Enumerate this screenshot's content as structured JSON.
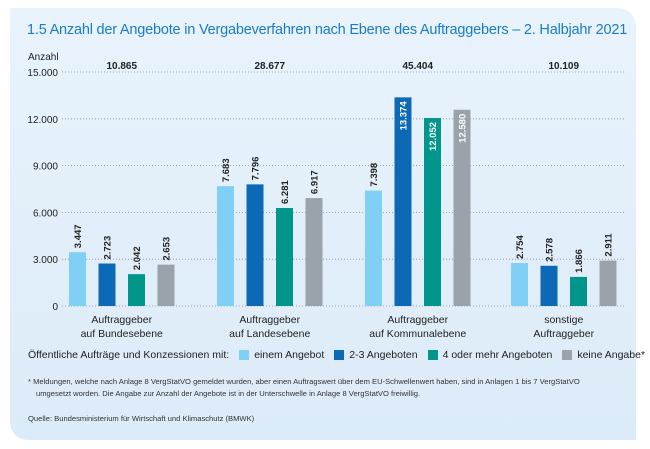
{
  "chart_data": {
    "type": "bar",
    "title": "1.5  Anzahl der Angebote in Vergabeverfahren nach Ebene des Auftraggebers – 2. Halbjahr 2021",
    "ylabel": "Anzahl",
    "ylim": [
      0,
      15000
    ],
    "yticks": [
      "0",
      "3.000",
      "6.000",
      "9.000",
      "12.000",
      "15.000"
    ],
    "grid": true,
    "categories": [
      [
        "Auftraggeber",
        "auf Bundesebene"
      ],
      [
        "Auftraggeber",
        "auf Landesebene"
      ],
      [
        "Auftraggeber",
        "auf Kommunalebene"
      ],
      [
        "sonstige",
        "Auftraggeber"
      ]
    ],
    "totals": [
      "10.865",
      "28.677",
      "45.404",
      "10.109"
    ],
    "series": [
      {
        "name": "einem Angebot",
        "color": "#7fd0f4",
        "values": [
          3447,
          7683,
          7398,
          2754
        ],
        "labels": [
          "3.447",
          "7.683",
          "7.398",
          "2.754"
        ]
      },
      {
        "name": "2-3 Angeboten",
        "color": "#0b69b5",
        "values": [
          2723,
          7796,
          13374,
          2578
        ],
        "labels": [
          "2.723",
          "7.796",
          "13.374",
          "2.578"
        ]
      },
      {
        "name": "4 oder mehr Angeboten",
        "color": "#00968c",
        "values": [
          2042,
          6281,
          12052,
          1866
        ],
        "labels": [
          "2.042",
          "6.281",
          "12.052",
          "1.866"
        ]
      },
      {
        "name": "keine Angabe*",
        "color": "#9aa3ab",
        "values": [
          2653,
          6917,
          12580,
          2911
        ],
        "labels": [
          "2.653",
          "6.917",
          "12.580",
          "2.911"
        ]
      }
    ],
    "legend_title": "Öffentliche Aufträge und Konzessionen mit:",
    "legend_position": "bottom"
  },
  "footnote": [
    "*  Meldungen, welche nach Anlage 8 VergStatVO gemeldet wurden, aber einen Auftragswert über dem EU-Schwellenwert haben, sind in Anlagen 1 bis 7 VergStatVO",
    "umgesetzt worden. Die Angabe zur Anzahl der Angebote ist in der Unterschwelle in Anlage 8 VergStatVO freiwillig."
  ],
  "source": "Quelle: Bundesministerium für Wirtschaft und Klimaschutz (BMWK)"
}
